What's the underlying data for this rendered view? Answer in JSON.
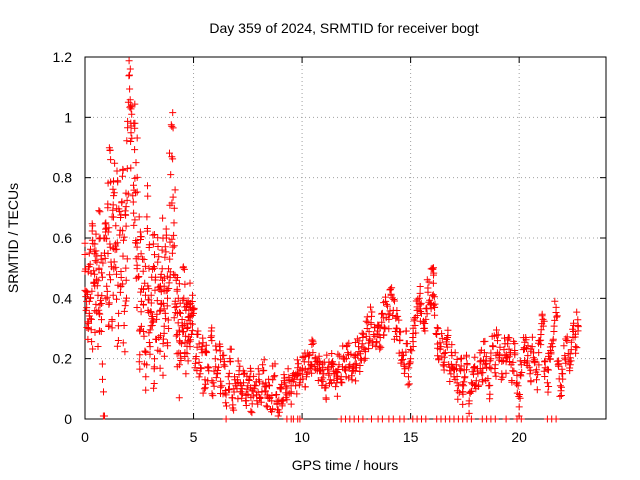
{
  "chart_data": {
    "type": "scatter",
    "title": "Day 359 of 2024, SRMTID for receiver bogt",
    "xlabel": "GPS time / hours",
    "ylabel": "SRMTID / TECUs",
    "xlim": [
      0,
      24
    ],
    "ylim": [
      0,
      1.2
    ],
    "xticks": [
      0,
      5,
      10,
      15,
      20
    ],
    "xtick_labels": [
      "0",
      "5",
      "10",
      "15",
      "20"
    ],
    "yticks": [
      0,
      0.2,
      0.4,
      0.6,
      0.8,
      1.0,
      1.2
    ],
    "ytick_labels": [
      "0",
      "0.2",
      "0.4",
      "0.6",
      "0.8",
      "1",
      "1.2"
    ],
    "grid": true,
    "marker": "plus",
    "color": "#ff0000",
    "series": [
      {
        "name": "SRMTID",
        "points": [
          [
            0.0,
            0.49
          ],
          [
            0.05,
            0.36
          ],
          [
            0.1,
            0.42
          ],
          [
            0.15,
            0.3
          ],
          [
            0.2,
            0.55
          ],
          [
            0.25,
            0.4
          ],
          [
            0.3,
            0.33
          ],
          [
            0.35,
            0.64
          ],
          [
            0.4,
            0.45
          ],
          [
            0.45,
            0.58
          ],
          [
            0.5,
            0.38
          ],
          [
            0.55,
            0.52
          ],
          [
            0.6,
            0.41
          ],
          [
            0.65,
            0.35
          ],
          [
            0.7,
            0.6
          ],
          [
            0.75,
            0.29
          ],
          [
            0.8,
            0.47
          ],
          [
            0.85,
            0.09
          ],
          [
            0.9,
            0.55
          ],
          [
            0.95,
            0.62
          ],
          [
            1.0,
            0.44
          ],
          [
            1.05,
            0.7
          ],
          [
            1.1,
            0.38
          ],
          [
            1.15,
            0.89
          ],
          [
            1.2,
            0.52
          ],
          [
            1.25,
            0.67
          ],
          [
            1.3,
            0.41
          ],
          [
            1.35,
            0.75
          ],
          [
            1.4,
            0.58
          ],
          [
            1.45,
            0.48
          ],
          [
            1.5,
            0.79
          ],
          [
            1.55,
            0.35
          ],
          [
            1.6,
            0.61
          ],
          [
            1.65,
            0.44
          ],
          [
            1.7,
            0.72
          ],
          [
            1.75,
            0.54
          ],
          [
            1.8,
            0.31
          ],
          [
            1.85,
            0.69
          ],
          [
            1.9,
            0.46
          ],
          [
            1.95,
            0.83
          ],
          [
            2.0,
            1.05
          ],
          [
            2.05,
            1.14
          ],
          [
            2.1,
            0.92
          ],
          [
            2.15,
            1.01
          ],
          [
            2.2,
            0.74
          ],
          [
            2.25,
            0.98
          ],
          [
            2.3,
            0.66
          ],
          [
            2.35,
            0.85
          ],
          [
            2.4,
            0.57
          ],
          [
            2.45,
            0.47
          ],
          [
            2.5,
            0.19
          ],
          [
            2.55,
            0.62
          ],
          [
            2.6,
            0.39
          ],
          [
            2.65,
            0.53
          ],
          [
            2.7,
            0.29
          ],
          [
            2.75,
            0.45
          ],
          [
            2.8,
            0.14
          ],
          [
            2.85,
            0.67
          ],
          [
            2.9,
            0.36
          ],
          [
            2.95,
            0.5
          ],
          [
            3.0,
            0.24
          ],
          [
            3.05,
            0.41
          ],
          [
            3.1,
            0.31
          ],
          [
            3.15,
            0.58
          ],
          [
            3.2,
            0.2
          ],
          [
            3.25,
            0.47
          ],
          [
            3.3,
            0.33
          ],
          [
            3.35,
            0.52
          ],
          [
            3.4,
            0.27
          ],
          [
            3.45,
            0.43
          ],
          [
            3.5,
            0.38
          ],
          [
            3.55,
            0.56
          ],
          [
            3.6,
            0.25
          ],
          [
            3.65,
            0.44
          ],
          [
            3.7,
            0.35
          ],
          [
            3.75,
            0.6
          ],
          [
            3.8,
            0.4
          ],
          [
            3.85,
            0.3
          ],
          [
            3.9,
            0.53
          ],
          [
            3.95,
            0.81
          ],
          [
            4.0,
            0.97
          ],
          [
            4.05,
            0.57
          ],
          [
            4.1,
            0.65
          ],
          [
            4.15,
            0.37
          ],
          [
            4.2,
            0.46
          ],
          [
            4.25,
            0.28
          ],
          [
            4.3,
            0.4
          ],
          [
            4.35,
            0.18
          ],
          [
            4.4,
            0.35
          ],
          [
            4.45,
            0.25
          ],
          [
            4.5,
            0.31
          ],
          [
            4.55,
            0.4
          ],
          [
            4.6,
            0.22
          ],
          [
            4.65,
            0.36
          ],
          [
            4.7,
            0.3
          ],
          [
            4.75,
            0.26
          ],
          [
            4.8,
            0.38
          ],
          [
            4.85,
            0.34
          ],
          [
            4.9,
            0.28
          ],
          [
            4.95,
            0.41
          ],
          [
            5.0,
            0.35
          ],
          [
            5.1,
            0.2
          ],
          [
            5.2,
            0.28
          ],
          [
            5.3,
            0.15
          ],
          [
            5.4,
            0.24
          ],
          [
            5.5,
            0.1
          ],
          [
            5.6,
            0.22
          ],
          [
            5.7,
            0.17
          ],
          [
            5.8,
            0.27
          ],
          [
            5.9,
            0.12
          ],
          [
            6.0,
            0.2
          ],
          [
            6.1,
            0.15
          ],
          [
            6.2,
            0.24
          ],
          [
            6.3,
            0.11
          ],
          [
            6.4,
            0.18
          ],
          [
            6.5,
            0.08
          ],
          [
            6.6,
            0.14
          ],
          [
            6.7,
            0.19
          ],
          [
            6.8,
            0.07
          ],
          [
            6.9,
            0.13
          ],
          [
            7.0,
            0.1
          ],
          [
            7.1,
            0.16
          ],
          [
            7.2,
            0.09
          ],
          [
            7.3,
            0.12
          ],
          [
            7.4,
            0.06
          ],
          [
            7.5,
            0.11
          ],
          [
            7.6,
            0.14
          ],
          [
            7.7,
            0.05
          ],
          [
            7.8,
            0.1
          ],
          [
            7.9,
            0.08
          ],
          [
            8.0,
            0.13
          ],
          [
            8.1,
            0.07
          ],
          [
            8.2,
            0.16
          ],
          [
            8.3,
            0.09
          ],
          [
            8.4,
            0.04
          ],
          [
            8.5,
            0.11
          ],
          [
            8.6,
            0.06
          ],
          [
            8.7,
            0.14
          ],
          [
            8.8,
            0.08
          ],
          [
            8.9,
            0.03
          ],
          [
            9.0,
            0.1
          ],
          [
            9.1,
            0.06
          ],
          [
            9.2,
            0.12
          ],
          [
            9.3,
            0.08
          ],
          [
            9.4,
            0.13
          ],
          [
            9.5,
            0.09
          ],
          [
            9.6,
            0.15
          ],
          [
            9.7,
            0.11
          ],
          [
            9.8,
            0.17
          ],
          [
            9.9,
            0.12
          ],
          [
            10.0,
            0.16
          ],
          [
            10.1,
            0.19
          ],
          [
            10.2,
            0.14
          ],
          [
            10.3,
            0.21
          ],
          [
            10.4,
            0.18
          ],
          [
            10.5,
            0.22
          ],
          [
            10.6,
            0.2
          ],
          [
            10.7,
            0.16
          ],
          [
            10.8,
            0.18
          ],
          [
            10.9,
            0.13
          ],
          [
            11.0,
            0.15
          ],
          [
            11.1,
            0.11
          ],
          [
            11.2,
            0.17
          ],
          [
            11.3,
            0.13
          ],
          [
            11.4,
            0.19
          ],
          [
            11.5,
            0.15
          ],
          [
            11.6,
            0.12
          ],
          [
            11.7,
            0.18
          ],
          [
            11.8,
            0.14
          ],
          [
            11.9,
            0.2
          ],
          [
            12.0,
            0.16
          ],
          [
            12.1,
            0.22
          ],
          [
            12.2,
            0.18
          ],
          [
            12.3,
            0.13
          ],
          [
            12.4,
            0.21
          ],
          [
            12.5,
            0.17
          ],
          [
            12.6,
            0.24
          ],
          [
            12.7,
            0.2
          ],
          [
            12.8,
            0.27
          ],
          [
            12.9,
            0.23
          ],
          [
            13.0,
            0.3
          ],
          [
            13.1,
            0.26
          ],
          [
            13.2,
            0.34
          ],
          [
            13.3,
            0.28
          ],
          [
            13.4,
            0.24
          ],
          [
            13.5,
            0.31
          ],
          [
            13.6,
            0.27
          ],
          [
            13.7,
            0.35
          ],
          [
            13.8,
            0.3
          ],
          [
            13.9,
            0.38
          ],
          [
            14.0,
            0.33
          ],
          [
            14.1,
            0.41
          ],
          [
            14.2,
            0.36
          ],
          [
            14.3,
            0.29
          ],
          [
            14.4,
            0.34
          ],
          [
            14.5,
            0.26
          ],
          [
            14.6,
            0.21
          ],
          [
            14.7,
            0.18
          ],
          [
            14.8,
            0.25
          ],
          [
            14.9,
            0.14
          ],
          [
            15.0,
            0.2
          ],
          [
            15.1,
            0.27
          ],
          [
            15.2,
            0.31
          ],
          [
            15.3,
            0.36
          ],
          [
            15.4,
            0.4
          ],
          [
            15.5,
            0.35
          ],
          [
            15.6,
            0.3
          ],
          [
            15.7,
            0.33
          ],
          [
            15.8,
            0.42
          ],
          [
            15.9,
            0.38
          ],
          [
            16.0,
            0.5
          ],
          [
            16.05,
            0.45
          ],
          [
            16.1,
            0.37
          ],
          [
            16.2,
            0.28
          ],
          [
            16.3,
            0.2
          ],
          [
            16.4,
            0.24
          ],
          [
            16.5,
            0.18
          ],
          [
            16.6,
            0.22
          ],
          [
            16.7,
            0.27
          ],
          [
            16.8,
            0.16
          ],
          [
            16.9,
            0.21
          ],
          [
            17.0,
            0.14
          ],
          [
            17.1,
            0.18
          ],
          [
            17.2,
            0.11
          ],
          [
            17.3,
            0.16
          ],
          [
            17.4,
            0.09
          ],
          [
            17.5,
            0.14
          ],
          [
            17.6,
            0.18
          ],
          [
            17.7,
            0.06
          ],
          [
            17.8,
            0.12
          ],
          [
            17.9,
            0.17
          ],
          [
            18.0,
            0.1
          ],
          [
            18.1,
            0.15
          ],
          [
            18.2,
            0.19
          ],
          [
            18.3,
            0.13
          ],
          [
            18.4,
            0.22
          ],
          [
            18.5,
            0.17
          ],
          [
            18.6,
            0.11
          ],
          [
            18.7,
            0.2
          ],
          [
            18.8,
            0.24
          ],
          [
            18.9,
            0.18
          ],
          [
            19.0,
            0.26
          ],
          [
            19.1,
            0.21
          ],
          [
            19.2,
            0.15
          ],
          [
            19.3,
            0.23
          ],
          [
            19.4,
            0.19
          ],
          [
            19.5,
            0.27
          ],
          [
            19.6,
            0.22
          ],
          [
            19.7,
            0.16
          ],
          [
            19.8,
            0.25
          ],
          [
            19.9,
            0.12
          ],
          [
            20.0,
            0.04
          ],
          [
            20.1,
            0.18
          ],
          [
            20.2,
            0.23
          ],
          [
            20.3,
            0.27
          ],
          [
            20.4,
            0.21
          ],
          [
            20.5,
            0.15
          ],
          [
            20.6,
            0.24
          ],
          [
            20.7,
            0.19
          ],
          [
            20.8,
            0.13
          ],
          [
            20.9,
            0.22
          ],
          [
            21.0,
            0.28
          ],
          [
            21.1,
            0.33
          ],
          [
            21.2,
            0.17
          ],
          [
            21.3,
            0.12
          ],
          [
            21.4,
            0.2
          ],
          [
            21.5,
            0.25
          ],
          [
            21.6,
            0.29
          ],
          [
            21.7,
            0.37
          ],
          [
            21.8,
            0.18
          ],
          [
            21.9,
            0.11
          ],
          [
            22.0,
            0.15
          ],
          [
            22.1,
            0.21
          ],
          [
            22.2,
            0.26
          ],
          [
            22.3,
            0.19
          ],
          [
            22.4,
            0.23
          ],
          [
            22.5,
            0.29
          ],
          [
            22.6,
            0.24
          ],
          [
            22.7,
            0.31
          ]
        ]
      }
    ],
    "zero_points_x": [
      6.5,
      9.3,
      9.5,
      9.6,
      9.8,
      9.9,
      11.8,
      12.0,
      12.2,
      12.4,
      12.6,
      12.8,
      13.2,
      13.5,
      13.7,
      14.0,
      14.2,
      14.5,
      14.7,
      15.1,
      15.3,
      15.5,
      15.7,
      16.2,
      16.4,
      16.6,
      16.8,
      17.0,
      17.2,
      17.4,
      17.6,
      17.8,
      18.3,
      18.5,
      18.7,
      18.9,
      19.4,
      19.9,
      20.1,
      21.3,
      21.5,
      21.7
    ]
  }
}
